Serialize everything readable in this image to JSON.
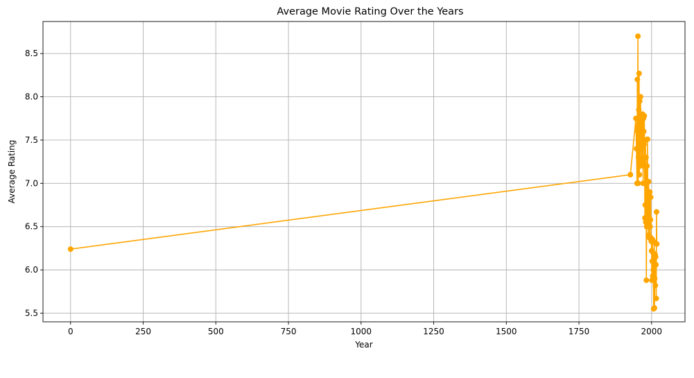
{
  "chart_data": {
    "type": "line",
    "title": "Average Movie Rating Over the Years",
    "xlabel": "Year",
    "ylabel": "Average Rating",
    "xlim": [
      -95,
      2115
    ],
    "ylim": [
      5.4,
      8.87
    ],
    "xticks": [
      0,
      250,
      500,
      750,
      1000,
      1250,
      1500,
      1750,
      2000
    ],
    "yticks": [
      5.5,
      6.0,
      6.5,
      7.0,
      7.5,
      8.0,
      8.5
    ],
    "grid": true,
    "color": "#ffa500",
    "marker": "circle",
    "series": [
      {
        "x": [
          0,
          1927,
          1946,
          1948,
          1950,
          1951,
          1952,
          1953,
          1954,
          1955,
          1956,
          1957,
          1958,
          1959,
          1960,
          1961,
          1962,
          1963,
          1964,
          1965,
          1966,
          1967,
          1968,
          1969,
          1970,
          1971,
          1972,
          1973,
          1974,
          1975,
          1976,
          1977,
          1978,
          1979,
          1980,
          1981,
          1982,
          1983,
          1984,
          1985,
          1986,
          1987,
          1988,
          1989,
          1990,
          1991,
          1992,
          1993,
          1994,
          1995,
          1996,
          1997,
          1998,
          1999,
          2000,
          2001,
          2002,
          2003,
          2004,
          2005,
          2006,
          2007,
          2008,
          2009,
          2010,
          2011,
          2012,
          2013,
          2014,
          2015,
          2016,
          2017,
          2018
        ],
        "y": [
          6.24,
          7.1,
          7.75,
          7.4,
          7.0,
          8.2,
          7.6,
          8.7,
          7.0,
          7.3,
          7.85,
          8.27,
          7.1,
          7.95,
          7.7,
          7.2,
          8.0,
          7.5,
          7.65,
          7.4,
          7.25,
          7.7,
          7.55,
          7.8,
          7.3,
          7.0,
          7.75,
          7.6,
          7.45,
          7.78,
          7.2,
          6.6,
          6.75,
          7.5,
          6.55,
          7.3,
          5.88,
          6.5,
          7.2,
          6.6,
          7.51,
          6.8,
          6.9,
          6.4,
          7.02,
          6.55,
          6.6,
          6.37,
          6.9,
          6.5,
          6.58,
          6.84,
          6.37,
          6.33,
          6.22,
          5.88,
          6.1,
          6.35,
          5.93,
          6.2,
          6.0,
          5.55,
          6.07,
          6.32,
          5.56,
          5.9,
          6.18,
          5.82,
          6.15,
          6.06,
          5.67,
          6.67,
          6.3
        ]
      }
    ]
  }
}
